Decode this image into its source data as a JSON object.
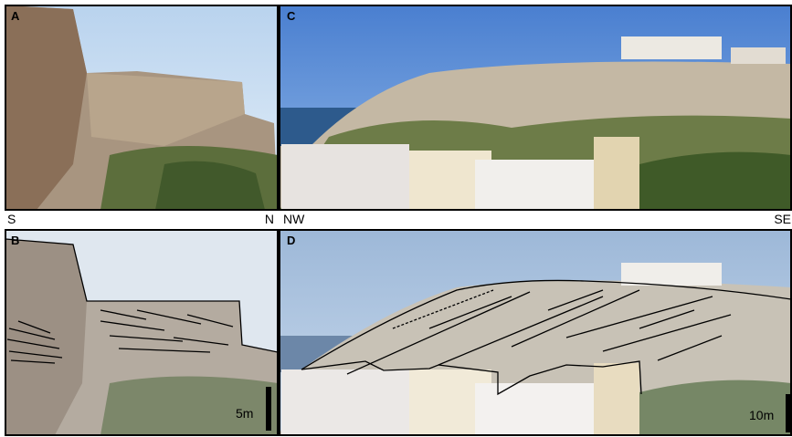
{
  "panels": [
    {
      "label": "A"
    },
    {
      "label": "B",
      "scale": "5m"
    },
    {
      "label": "C"
    },
    {
      "label": "D",
      "scale": "10m"
    }
  ],
  "orientation": {
    "left_pair": [
      "S",
      "N"
    ],
    "right_pair": [
      "NW",
      "SE"
    ]
  }
}
